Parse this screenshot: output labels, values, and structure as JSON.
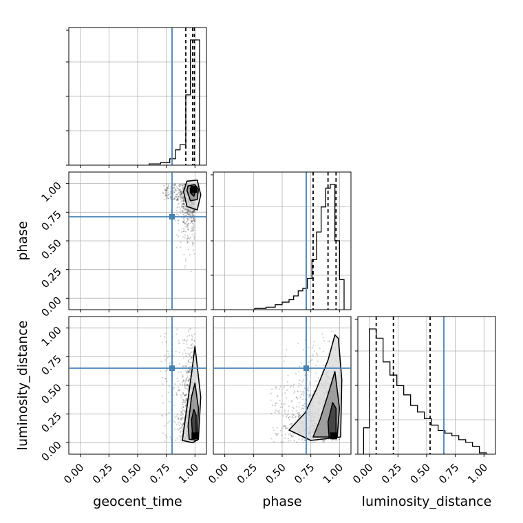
{
  "chart_data": {
    "type": "corner",
    "parameters": [
      "geocent_time",
      "phase",
      "luminosity_distance"
    ],
    "axis_range": [
      -0.1,
      1.1
    ],
    "tick_labels": [
      "0.00",
      "0.25",
      "0.50",
      "0.75",
      "1.00"
    ],
    "ticks": [
      0,
      0.25,
      0.5,
      0.75,
      1.0
    ],
    "truths": {
      "geocent_time": 0.8,
      "phase": 0.71,
      "luminosity_distance": 0.65
    },
    "truth_color": "#4682b4",
    "grid": true,
    "histograms": {
      "geocent_time": {
        "bins": [
          [
            0.6,
            0.7,
            0.01
          ],
          [
            0.7,
            0.78,
            0.02
          ],
          [
            0.78,
            0.83,
            0.05
          ],
          [
            0.83,
            0.87,
            0.12
          ],
          [
            0.87,
            0.92,
            0.16
          ],
          [
            0.92,
            0.96,
            0.55
          ],
          [
            0.96,
            1.0,
            0.98
          ],
          [
            1.0,
            1.04,
            0.98
          ]
        ],
        "quantiles": [
          0.92,
          0.98,
          0.995
        ]
      },
      "phase": {
        "bins": [
          [
            0.26,
            0.36,
            0.01
          ],
          [
            0.36,
            0.44,
            0.02
          ],
          [
            0.44,
            0.5,
            0.04
          ],
          [
            0.5,
            0.56,
            0.06
          ],
          [
            0.56,
            0.6,
            0.08
          ],
          [
            0.6,
            0.64,
            0.11
          ],
          [
            0.64,
            0.68,
            0.15
          ],
          [
            0.68,
            0.72,
            0.17
          ],
          [
            0.72,
            0.76,
            0.25
          ],
          [
            0.76,
            0.8,
            0.4
          ],
          [
            0.8,
            0.84,
            0.62
          ],
          [
            0.84,
            0.88,
            0.82
          ],
          [
            0.88,
            0.92,
            0.97
          ],
          [
            0.92,
            0.96,
            1.0
          ],
          [
            0.96,
            1.0,
            0.55
          ],
          [
            1.0,
            1.04,
            0.24
          ]
        ],
        "quantiles": [
          0.77,
          0.9,
          0.97
        ]
      },
      "luminosity_distance": {
        "bins": [
          [
            -0.05,
            0.0,
            0.2
          ],
          [
            0.0,
            0.06,
            0.95
          ],
          [
            0.06,
            0.12,
            0.88
          ],
          [
            0.12,
            0.18,
            0.7
          ],
          [
            0.18,
            0.24,
            0.6
          ],
          [
            0.24,
            0.3,
            0.52
          ],
          [
            0.3,
            0.36,
            0.45
          ],
          [
            0.36,
            0.42,
            0.37
          ],
          [
            0.42,
            0.48,
            0.32
          ],
          [
            0.48,
            0.54,
            0.27
          ],
          [
            0.54,
            0.6,
            0.22
          ],
          [
            0.6,
            0.66,
            0.18
          ],
          [
            0.66,
            0.72,
            0.16
          ],
          [
            0.72,
            0.78,
            0.14
          ],
          [
            0.78,
            0.84,
            0.11
          ],
          [
            0.84,
            0.9,
            0.09
          ],
          [
            0.9,
            0.96,
            0.06
          ],
          [
            0.96,
            1.02,
            0.01
          ]
        ],
        "quantiles": [
          0.06,
          0.21,
          0.53
        ]
      }
    },
    "contours_2d": {
      "phase_vs_geocent_time": [
        [
          [
            0.96,
            0.92
          ],
          [
            0.99,
            0.89
          ],
          [
            1.01,
            0.94
          ],
          [
            0.99,
            0.97
          ],
          [
            0.96,
            0.96
          ]
        ],
        [
          [
            0.93,
            0.94
          ],
          [
            0.96,
            0.85
          ],
          [
            1.02,
            0.86
          ],
          [
            1.03,
            0.95
          ],
          [
            1.0,
            0.99
          ],
          [
            0.94,
            0.98
          ]
        ],
        [
          [
            0.9,
            0.93
          ],
          [
            0.93,
            0.8
          ],
          [
            1.02,
            0.77
          ],
          [
            1.05,
            0.9
          ],
          [
            1.02,
            1.03
          ],
          [
            0.93,
            1.02
          ]
        ]
      ],
      "luminosity_distance_vs_geocent_time": [
        [
          [
            0.98,
            0.04
          ],
          [
            1.01,
            0.05
          ],
          [
            1.01,
            0.24
          ],
          [
            0.99,
            0.29
          ],
          [
            0.97,
            0.2
          ]
        ],
        [
          [
            0.95,
            0.03
          ],
          [
            1.02,
            0.02
          ],
          [
            1.03,
            0.3
          ],
          [
            1.0,
            0.52
          ],
          [
            0.97,
            0.4
          ],
          [
            0.94,
            0.15
          ]
        ],
        [
          [
            0.89,
            0.02
          ],
          [
            0.98,
            0.0
          ],
          [
            1.03,
            0.03
          ],
          [
            1.05,
            0.4
          ],
          [
            1.0,
            0.84
          ],
          [
            0.97,
            0.6
          ],
          [
            0.92,
            0.24
          ]
        ]
      ],
      "luminosity_distance_vs_phase": [
        [
          [
            0.91,
            0.04
          ],
          [
            0.97,
            0.04
          ],
          [
            0.97,
            0.3
          ],
          [
            0.94,
            0.35
          ],
          [
            0.9,
            0.18
          ]
        ],
        [
          [
            0.77,
            0.05
          ],
          [
            0.98,
            0.05
          ],
          [
            1.0,
            0.3
          ],
          [
            0.96,
            0.62
          ],
          [
            0.9,
            0.42
          ],
          [
            0.83,
            0.2
          ]
        ],
        [
          [
            0.56,
            0.11
          ],
          [
            0.75,
            0.02
          ],
          [
            1.01,
            0.05
          ],
          [
            1.02,
            0.55
          ],
          [
            0.99,
            0.91
          ],
          [
            0.96,
            0.94
          ],
          [
            0.9,
            0.72
          ],
          [
            0.8,
            0.47
          ],
          [
            0.7,
            0.26
          ]
        ]
      ]
    },
    "density_peaks": {
      "phase_vs_geocent_time": [
        0.99,
        0.95
      ],
      "luminosity_distance_vs_geocent_time": [
        1.0,
        0.06
      ],
      "luminosity_distance_vs_phase": [
        0.95,
        0.06
      ]
    }
  }
}
